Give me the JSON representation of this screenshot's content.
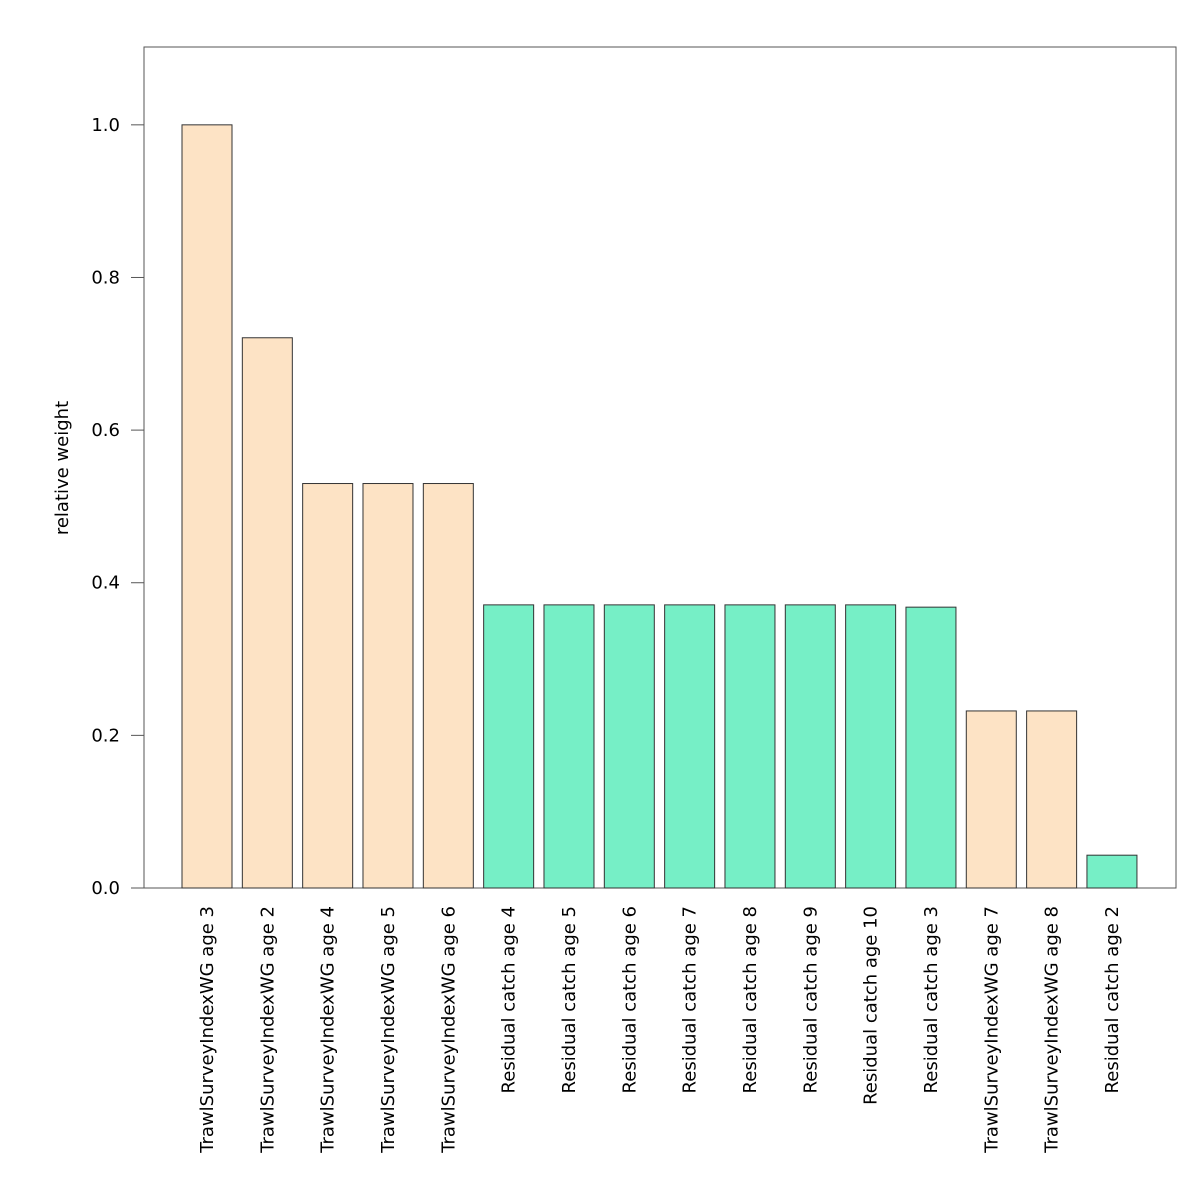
{
  "chart_data": {
    "type": "bar",
    "title": "",
    "xlabel": "",
    "ylabel": "relative weight",
    "ylim": [
      0,
      1.102
    ],
    "yticks": [
      "0.0",
      "0.2",
      "0.4",
      "0.6",
      "0.8",
      "1.0"
    ],
    "grid": false,
    "colors": {
      "TrawlSurveyIndexWG": "#FDE3C5",
      "Residual catch": "#76EFC6",
      "border": "#333333",
      "frame": "#555555"
    },
    "categories": [
      "TrawlSurveyIndexWG age 3",
      "TrawlSurveyIndexWG age 2",
      "TrawlSurveyIndexWG age 4",
      "TrawlSurveyIndexWG age 5",
      "TrawlSurveyIndexWG age 6",
      "Residual catch age 4",
      "Residual catch age 5",
      "Residual catch age 6",
      "Residual catch age 7",
      "Residual catch age 8",
      "Residual catch age 9",
      "Residual catch age 10",
      "Residual catch age 3",
      "TrawlSurveyIndexWG age 7",
      "TrawlSurveyIndexWG age 8",
      "Residual catch age 2"
    ],
    "groups": [
      "TrawlSurveyIndexWG",
      "TrawlSurveyIndexWG",
      "TrawlSurveyIndexWG",
      "TrawlSurveyIndexWG",
      "TrawlSurveyIndexWG",
      "Residual catch",
      "Residual catch",
      "Residual catch",
      "Residual catch",
      "Residual catch",
      "Residual catch",
      "Residual catch",
      "Residual catch",
      "TrawlSurveyIndexWG",
      "TrawlSurveyIndexWG",
      "Residual catch"
    ],
    "values": [
      1.0,
      0.721,
      0.53,
      0.53,
      0.53,
      0.371,
      0.371,
      0.371,
      0.371,
      0.371,
      0.371,
      0.371,
      0.368,
      0.232,
      0.232,
      0.043
    ]
  }
}
